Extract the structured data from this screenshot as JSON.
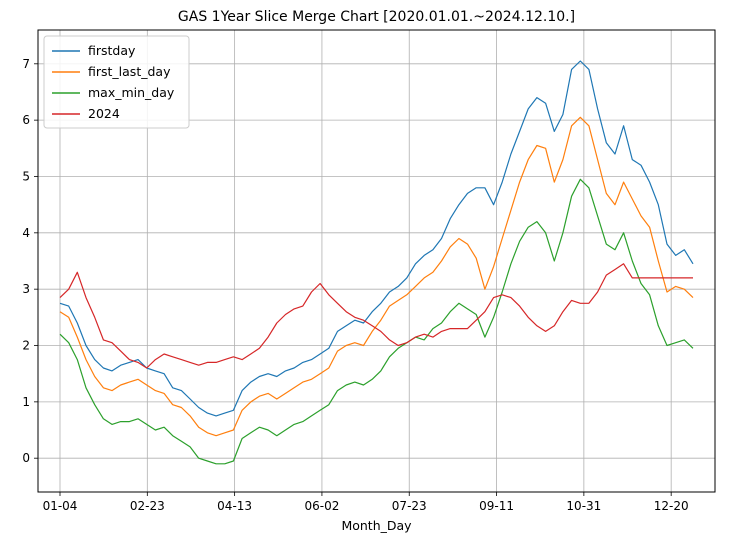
{
  "chart_data": {
    "type": "line",
    "title": "GAS 1Year Slice Merge Chart [2020.01.01.~2024.12.10.]",
    "xlabel": "Month_Day",
    "ylabel": "",
    "x_ticks": [
      "01-04",
      "02-23",
      "04-13",
      "06-02",
      "07-23",
      "09-11",
      "10-31",
      "12-20"
    ],
    "y_ticks": [
      0,
      1,
      2,
      3,
      4,
      5,
      6,
      7
    ],
    "xlim": [
      0,
      365
    ],
    "ylim": [
      -0.6,
      7.6
    ],
    "grid": true,
    "legend_position": "top-left",
    "series": [
      {
        "name": "firstday",
        "color": "#1f77b4",
        "points": [
          [
            0,
            2.75
          ],
          [
            5,
            2.7
          ],
          [
            10,
            2.4
          ],
          [
            15,
            2.0
          ],
          [
            20,
            1.75
          ],
          [
            25,
            1.6
          ],
          [
            30,
            1.55
          ],
          [
            35,
            1.65
          ],
          [
            40,
            1.7
          ],
          [
            45,
            1.75
          ],
          [
            50,
            1.6
          ],
          [
            55,
            1.55
          ],
          [
            60,
            1.5
          ],
          [
            65,
            1.25
          ],
          [
            70,
            1.2
          ],
          [
            75,
            1.05
          ],
          [
            80,
            0.9
          ],
          [
            85,
            0.8
          ],
          [
            90,
            0.75
          ],
          [
            95,
            0.8
          ],
          [
            100,
            0.85
          ],
          [
            105,
            1.2
          ],
          [
            110,
            1.35
          ],
          [
            115,
            1.45
          ],
          [
            120,
            1.5
          ],
          [
            125,
            1.45
          ],
          [
            130,
            1.55
          ],
          [
            135,
            1.6
          ],
          [
            140,
            1.7
          ],
          [
            145,
            1.75
          ],
          [
            150,
            1.85
          ],
          [
            155,
            1.95
          ],
          [
            160,
            2.25
          ],
          [
            165,
            2.35
          ],
          [
            170,
            2.45
          ],
          [
            175,
            2.4
          ],
          [
            180,
            2.6
          ],
          [
            185,
            2.75
          ],
          [
            190,
            2.95
          ],
          [
            195,
            3.05
          ],
          [
            200,
            3.2
          ],
          [
            205,
            3.45
          ],
          [
            210,
            3.6
          ],
          [
            215,
            3.7
          ],
          [
            220,
            3.9
          ],
          [
            225,
            4.25
          ],
          [
            230,
            4.5
          ],
          [
            235,
            4.7
          ],
          [
            240,
            4.8
          ],
          [
            245,
            4.8
          ],
          [
            250,
            4.5
          ],
          [
            255,
            4.9
          ],
          [
            260,
            5.4
          ],
          [
            265,
            5.8
          ],
          [
            270,
            6.2
          ],
          [
            275,
            6.4
          ],
          [
            280,
            6.3
          ],
          [
            285,
            5.8
          ],
          [
            290,
            6.1
          ],
          [
            295,
            6.9
          ],
          [
            300,
            7.05
          ],
          [
            305,
            6.9
          ],
          [
            310,
            6.2
          ],
          [
            315,
            5.6
          ],
          [
            320,
            5.4
          ],
          [
            325,
            5.9
          ],
          [
            330,
            5.3
          ],
          [
            335,
            5.2
          ],
          [
            340,
            4.9
          ],
          [
            345,
            4.5
          ],
          [
            350,
            3.8
          ],
          [
            355,
            3.6
          ],
          [
            360,
            3.7
          ],
          [
            365,
            3.45
          ]
        ]
      },
      {
        "name": "first_last_day",
        "color": "#ff7f0e",
        "points": [
          [
            0,
            2.6
          ],
          [
            5,
            2.5
          ],
          [
            10,
            2.15
          ],
          [
            15,
            1.75
          ],
          [
            20,
            1.45
          ],
          [
            25,
            1.25
          ],
          [
            30,
            1.2
          ],
          [
            35,
            1.3
          ],
          [
            40,
            1.35
          ],
          [
            45,
            1.4
          ],
          [
            50,
            1.3
          ],
          [
            55,
            1.2
          ],
          [
            60,
            1.15
          ],
          [
            65,
            0.95
          ],
          [
            70,
            0.9
          ],
          [
            75,
            0.75
          ],
          [
            80,
            0.55
          ],
          [
            85,
            0.45
          ],
          [
            90,
            0.4
          ],
          [
            95,
            0.45
          ],
          [
            100,
            0.5
          ],
          [
            105,
            0.85
          ],
          [
            110,
            1.0
          ],
          [
            115,
            1.1
          ],
          [
            120,
            1.15
          ],
          [
            125,
            1.05
          ],
          [
            130,
            1.15
          ],
          [
            135,
            1.25
          ],
          [
            140,
            1.35
          ],
          [
            145,
            1.4
          ],
          [
            150,
            1.5
          ],
          [
            155,
            1.6
          ],
          [
            160,
            1.9
          ],
          [
            165,
            2.0
          ],
          [
            170,
            2.05
          ],
          [
            175,
            2.0
          ],
          [
            180,
            2.25
          ],
          [
            185,
            2.45
          ],
          [
            190,
            2.7
          ],
          [
            195,
            2.8
          ],
          [
            200,
            2.9
          ],
          [
            205,
            3.05
          ],
          [
            210,
            3.2
          ],
          [
            215,
            3.3
          ],
          [
            220,
            3.5
          ],
          [
            225,
            3.75
          ],
          [
            230,
            3.9
          ],
          [
            235,
            3.8
          ],
          [
            240,
            3.55
          ],
          [
            245,
            3.0
          ],
          [
            250,
            3.4
          ],
          [
            255,
            3.9
          ],
          [
            260,
            4.4
          ],
          [
            265,
            4.9
          ],
          [
            270,
            5.3
          ],
          [
            275,
            5.55
          ],
          [
            280,
            5.5
          ],
          [
            285,
            4.9
          ],
          [
            290,
            5.3
          ],
          [
            295,
            5.9
          ],
          [
            300,
            6.05
          ],
          [
            305,
            5.9
          ],
          [
            310,
            5.3
          ],
          [
            315,
            4.7
          ],
          [
            320,
            4.5
          ],
          [
            325,
            4.9
          ],
          [
            330,
            4.6
          ],
          [
            335,
            4.3
          ],
          [
            340,
            4.1
          ],
          [
            345,
            3.5
          ],
          [
            350,
            2.95
          ],
          [
            355,
            3.05
          ],
          [
            360,
            3.0
          ],
          [
            365,
            2.85
          ]
        ]
      },
      {
        "name": "max_min_day",
        "color": "#2ca02c",
        "points": [
          [
            0,
            2.2
          ],
          [
            5,
            2.05
          ],
          [
            10,
            1.75
          ],
          [
            15,
            1.25
          ],
          [
            20,
            0.95
          ],
          [
            25,
            0.7
          ],
          [
            30,
            0.6
          ],
          [
            35,
            0.65
          ],
          [
            40,
            0.65
          ],
          [
            45,
            0.7
          ],
          [
            50,
            0.6
          ],
          [
            55,
            0.5
          ],
          [
            60,
            0.55
          ],
          [
            65,
            0.4
          ],
          [
            70,
            0.3
          ],
          [
            75,
            0.2
          ],
          [
            80,
            0.0
          ],
          [
            85,
            -0.05
          ],
          [
            90,
            -0.1
          ],
          [
            95,
            -0.1
          ],
          [
            100,
            -0.05
          ],
          [
            105,
            0.35
          ],
          [
            110,
            0.45
          ],
          [
            115,
            0.55
          ],
          [
            120,
            0.5
          ],
          [
            125,
            0.4
          ],
          [
            130,
            0.5
          ],
          [
            135,
            0.6
          ],
          [
            140,
            0.65
          ],
          [
            145,
            0.75
          ],
          [
            150,
            0.85
          ],
          [
            155,
            0.95
          ],
          [
            160,
            1.2
          ],
          [
            165,
            1.3
          ],
          [
            170,
            1.35
          ],
          [
            175,
            1.3
          ],
          [
            180,
            1.4
          ],
          [
            185,
            1.55
          ],
          [
            190,
            1.8
          ],
          [
            195,
            1.95
          ],
          [
            200,
            2.05
          ],
          [
            205,
            2.15
          ],
          [
            210,
            2.1
          ],
          [
            215,
            2.3
          ],
          [
            220,
            2.4
          ],
          [
            225,
            2.6
          ],
          [
            230,
            2.75
          ],
          [
            235,
            2.65
          ],
          [
            240,
            2.55
          ],
          [
            245,
            2.15
          ],
          [
            250,
            2.5
          ],
          [
            255,
            2.95
          ],
          [
            260,
            3.45
          ],
          [
            265,
            3.85
          ],
          [
            270,
            4.1
          ],
          [
            275,
            4.2
          ],
          [
            280,
            4.0
          ],
          [
            285,
            3.5
          ],
          [
            290,
            4.0
          ],
          [
            295,
            4.65
          ],
          [
            300,
            4.95
          ],
          [
            305,
            4.8
          ],
          [
            310,
            4.3
          ],
          [
            315,
            3.8
          ],
          [
            320,
            3.7
          ],
          [
            325,
            4.0
          ],
          [
            330,
            3.5
          ],
          [
            335,
            3.1
          ],
          [
            340,
            2.9
          ],
          [
            345,
            2.35
          ],
          [
            350,
            2.0
          ],
          [
            355,
            2.05
          ],
          [
            360,
            2.1
          ],
          [
            365,
            1.95
          ]
        ]
      },
      {
        "name": "2024",
        "color": "#d62728",
        "points": [
          [
            0,
            2.85
          ],
          [
            5,
            3.0
          ],
          [
            10,
            3.3
          ],
          [
            15,
            2.85
          ],
          [
            20,
            2.5
          ],
          [
            25,
            2.1
          ],
          [
            30,
            2.05
          ],
          [
            35,
            1.9
          ],
          [
            40,
            1.75
          ],
          [
            45,
            1.7
          ],
          [
            50,
            1.6
          ],
          [
            55,
            1.75
          ],
          [
            60,
            1.85
          ],
          [
            65,
            1.8
          ],
          [
            70,
            1.75
          ],
          [
            75,
            1.7
          ],
          [
            80,
            1.65
          ],
          [
            85,
            1.7
          ],
          [
            90,
            1.7
          ],
          [
            95,
            1.75
          ],
          [
            100,
            1.8
          ],
          [
            105,
            1.75
          ],
          [
            110,
            1.85
          ],
          [
            115,
            1.95
          ],
          [
            120,
            2.15
          ],
          [
            125,
            2.4
          ],
          [
            130,
            2.55
          ],
          [
            135,
            2.65
          ],
          [
            140,
            2.7
          ],
          [
            145,
            2.95
          ],
          [
            150,
            3.1
          ],
          [
            155,
            2.9
          ],
          [
            160,
            2.75
          ],
          [
            165,
            2.6
          ],
          [
            170,
            2.5
          ],
          [
            175,
            2.45
          ],
          [
            180,
            2.35
          ],
          [
            185,
            2.25
          ],
          [
            190,
            2.1
          ],
          [
            195,
            2.0
          ],
          [
            200,
            2.05
          ],
          [
            205,
            2.15
          ],
          [
            210,
            2.2
          ],
          [
            215,
            2.15
          ],
          [
            220,
            2.25
          ],
          [
            225,
            2.3
          ],
          [
            230,
            2.3
          ],
          [
            235,
            2.3
          ],
          [
            240,
            2.45
          ],
          [
            245,
            2.6
          ],
          [
            250,
            2.85
          ],
          [
            255,
            2.9
          ],
          [
            260,
            2.85
          ],
          [
            265,
            2.7
          ],
          [
            270,
            2.5
          ],
          [
            275,
            2.35
          ],
          [
            280,
            2.25
          ],
          [
            285,
            2.35
          ],
          [
            290,
            2.6
          ],
          [
            295,
            2.8
          ],
          [
            300,
            2.75
          ],
          [
            305,
            2.75
          ],
          [
            310,
            2.95
          ],
          [
            315,
            3.25
          ],
          [
            320,
            3.35
          ],
          [
            325,
            3.45
          ],
          [
            330,
            3.2
          ],
          [
            335,
            3.2
          ],
          [
            340,
            3.2
          ],
          [
            345,
            3.2
          ],
          [
            350,
            3.2
          ],
          [
            355,
            3.2
          ],
          [
            360,
            3.2
          ],
          [
            365,
            3.2
          ]
        ]
      }
    ]
  }
}
